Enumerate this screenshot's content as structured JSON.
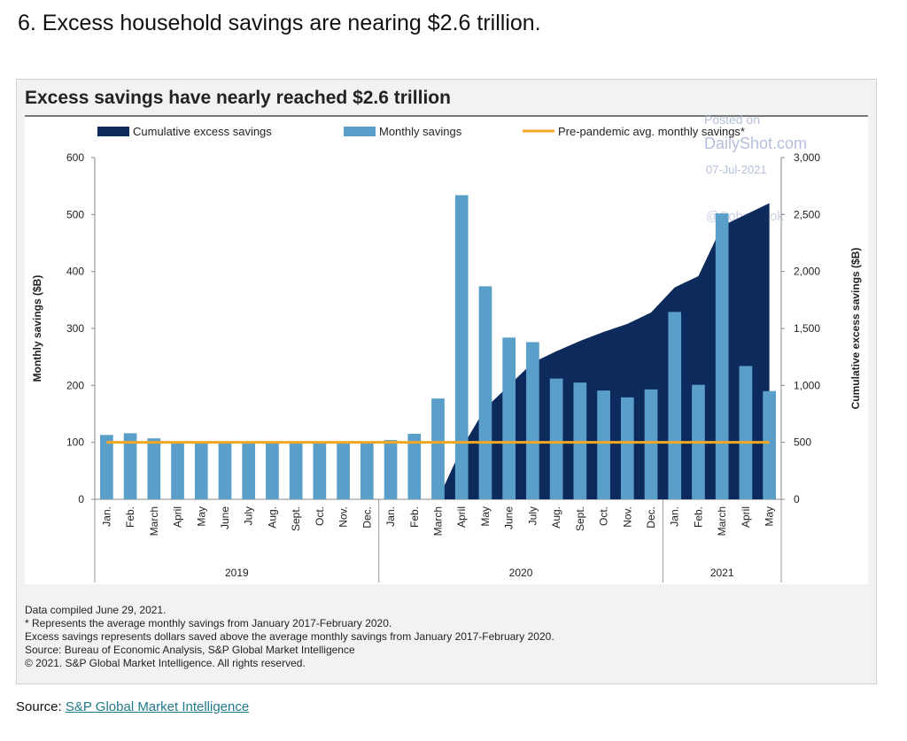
{
  "page": {
    "heading": "6. Excess household savings are nearing $2.6 trillion.",
    "source_prefix": "Source: ",
    "source_link": "S&P Global Market Intelligence"
  },
  "figure": {
    "title": "Excess savings have nearly reached $2.6 trillion",
    "notes": [
      "Data compiled June 29, 2021.",
      "* Represents the average monthly savings from January 2017-February 2020.",
      "Excess savings represents dollars saved above the average monthly savings from January 2017-February 2020.",
      "Source: Bureau of Economic Analysis, S&P Global Market Intelligence",
      "© 2021. S&P Global Market Intelligence. All rights reserved."
    ],
    "watermark": [
      "Posted on",
      "DailyShot.com",
      "07-Jul-2021",
      "@SoberLook"
    ]
  },
  "colors": {
    "cumulative": "#0c2a5b",
    "monthly": "#5a9fc9",
    "prepandemic": "#f5a623"
  },
  "chart_data": {
    "type": "bar",
    "title": "Excess savings have nearly reached $2.6 trillion",
    "ylabel": "Monthly savings ($B)",
    "ylabel_right": "Cumulative excess savings ($B)",
    "ylim": [
      0,
      600
    ],
    "ylim_right": [
      0,
      3000
    ],
    "yticks": [
      "0",
      "100",
      "200",
      "300",
      "400",
      "500",
      "600"
    ],
    "yticks_right": [
      "0",
      "500",
      "1,000",
      "1,500",
      "2,000",
      "2,500",
      "3,000"
    ],
    "legend_position": "top",
    "categories": [
      "Jan.",
      "Feb.",
      "March",
      "April",
      "May",
      "June",
      "July",
      "Aug.",
      "Sept.",
      "Oct.",
      "Nov.",
      "Dec.",
      "Jan.",
      "Feb.",
      "March",
      "April",
      "May",
      "June",
      "July",
      "Aug.",
      "Sept.",
      "Oct.",
      "Nov.",
      "Dec.",
      "Jan.",
      "Feb.",
      "March",
      "April",
      "May"
    ],
    "year_groups": [
      {
        "label": "2019",
        "start": 0,
        "count": 12
      },
      {
        "label": "2020",
        "start": 12,
        "count": 12
      },
      {
        "label": "2021",
        "start": 24,
        "count": 5
      }
    ],
    "series": [
      {
        "name": "Cumulative excess savings",
        "type": "area",
        "axis": "right",
        "values": [
          0,
          0,
          0,
          0,
          0,
          0,
          0,
          0,
          0,
          0,
          0,
          0,
          0,
          0,
          0,
          450,
          800,
          1000,
          1200,
          1300,
          1390,
          1470,
          1540,
          1640,
          1860,
          1960,
          2400,
          2500,
          2600
        ]
      },
      {
        "name": "Monthly savings",
        "type": "bar",
        "axis": "left",
        "values": [
          113,
          116,
          107,
          100,
          98,
          98,
          98,
          98,
          98,
          98,
          101,
          100,
          104,
          115,
          177,
          534,
          374,
          284,
          276,
          212,
          205,
          191,
          179,
          193,
          329,
          201,
          502,
          234,
          190
        ]
      },
      {
        "name": "Pre-pandemic avg. monthly savings*",
        "type": "line",
        "axis": "left",
        "values": [
          100,
          100,
          100,
          100,
          100,
          100,
          100,
          100,
          100,
          100,
          100,
          100,
          100,
          100,
          100,
          100,
          100,
          100,
          100,
          100,
          100,
          100,
          100,
          100,
          100,
          100,
          100,
          100,
          100
        ]
      }
    ]
  }
}
